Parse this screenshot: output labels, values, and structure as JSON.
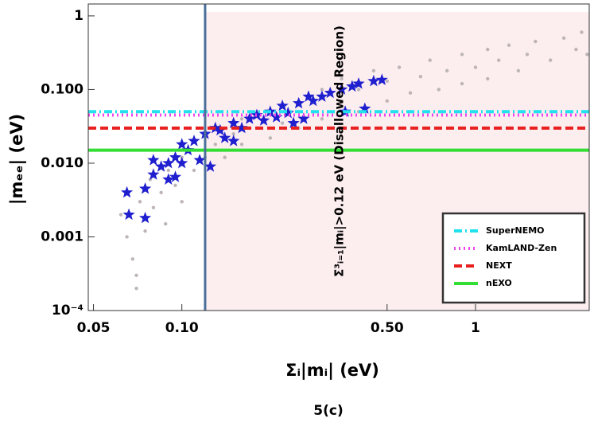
{
  "chart_data": {
    "type": "scatter",
    "xlabel": "Σᵢ|mᵢ| (eV)",
    "ylabel": "|mₑₑ| (eV)",
    "caption": "5(c)",
    "annotation": "Σ³ᵢ₌₁|mᵢ|>0.12 eV (Disallowed Region)",
    "xscale": "log",
    "yscale": "log",
    "xlim": [
      0.048,
      2.44
    ],
    "ylim": [
      0.0001,
      1.45
    ],
    "xticks": [
      0.05,
      {
        "value": 0.1,
        "label": "0.10"
      },
      {
        "value": 0.5,
        "label": "0.50"
      },
      1
    ],
    "yticks": [
      {
        "value": 0.0001,
        "label": "10⁻⁴"
      },
      0.001,
      {
        "value": 0.01,
        "label": "0.010"
      },
      {
        "value": 0.1,
        "label": "0.100"
      },
      1
    ],
    "legend": "bottom-right",
    "series": [
      {
        "marker": "circle",
        "color": "#bdb5b8",
        "x": [
          0.062,
          0.065,
          0.068,
          0.07,
          0.072,
          0.075,
          0.078,
          0.08,
          0.085,
          0.088,
          0.09,
          0.095,
          0.1,
          0.1,
          0.11,
          0.11,
          0.12,
          0.13,
          0.13,
          0.14,
          0.15,
          0.16,
          0.16,
          0.18,
          0.2,
          0.2,
          0.22,
          0.25,
          0.25,
          0.28,
          0.3,
          0.3,
          0.35,
          0.35,
          0.4,
          0.4,
          0.45,
          0.5,
          0.5,
          0.55,
          0.6,
          0.65,
          0.7,
          0.75,
          0.8,
          0.9,
          0.9,
          1.0,
          1.1,
          1.1,
          1.2,
          1.3,
          1.4,
          1.5,
          1.6,
          1.8,
          2.0,
          2.2,
          2.3,
          2.4,
          0.07
        ],
        "values": [
          0.002,
          0.001,
          0.0005,
          0.0003,
          0.003,
          0.0012,
          0.006,
          0.0025,
          0.004,
          0.0015,
          0.008,
          0.005,
          0.012,
          0.003,
          0.008,
          0.02,
          0.012,
          0.018,
          0.03,
          0.012,
          0.025,
          0.04,
          0.018,
          0.03,
          0.05,
          0.022,
          0.035,
          0.07,
          0.03,
          0.05,
          0.1,
          0.04,
          0.07,
          0.14,
          0.05,
          0.1,
          0.18,
          0.07,
          0.13,
          0.2,
          0.09,
          0.15,
          0.25,
          0.1,
          0.18,
          0.3,
          0.12,
          0.2,
          0.35,
          0.14,
          0.25,
          0.4,
          0.18,
          0.3,
          0.45,
          0.25,
          0.5,
          0.35,
          0.6,
          0.3,
          0.0002
        ]
      },
      {
        "marker": "star",
        "color": "#1f1fcf",
        "x": [
          0.065,
          0.066,
          0.075,
          0.075,
          0.08,
          0.08,
          0.085,
          0.09,
          0.09,
          0.095,
          0.095,
          0.1,
          0.1,
          0.105,
          0.11,
          0.115,
          0.12,
          0.125,
          0.13,
          0.135,
          0.14,
          0.15,
          0.16,
          0.17,
          0.18,
          0.19,
          0.2,
          0.21,
          0.22,
          0.23,
          0.25,
          0.26,
          0.28,
          0.3,
          0.32,
          0.35,
          0.38,
          0.4,
          0.45,
          0.48,
          0.42,
          0.36,
          0.27,
          0.24,
          0.15
        ],
        "values": [
          0.004,
          0.002,
          0.0018,
          0.0045,
          0.007,
          0.011,
          0.009,
          0.01,
          0.006,
          0.012,
          0.0065,
          0.018,
          0.01,
          0.015,
          0.02,
          0.011,
          0.025,
          0.009,
          0.03,
          0.028,
          0.022,
          0.035,
          0.03,
          0.04,
          0.045,
          0.038,
          0.05,
          0.042,
          0.06,
          0.048,
          0.065,
          0.04,
          0.07,
          0.08,
          0.09,
          0.1,
          0.11,
          0.12,
          0.13,
          0.135,
          0.055,
          0.05,
          0.08,
          0.035,
          0.02
        ]
      }
    ],
    "hlines": [
      {
        "name": "SuperNEMO",
        "value": 0.05,
        "color": "#22e0ee",
        "style": "dashdot"
      },
      {
        "name": "KamLAND-Zen",
        "value": 0.045,
        "color": "#ee44ee",
        "style": "dotted"
      },
      {
        "name": "NEXT",
        "value": 0.03,
        "color": "#e82020",
        "style": "dashed"
      },
      {
        "name": "nEXO",
        "value": 0.015,
        "color": "#33dd33",
        "style": "solid"
      }
    ],
    "vline": {
      "value": 0.12,
      "color": "#4a6f99",
      "region_color": "#fcedef"
    }
  }
}
